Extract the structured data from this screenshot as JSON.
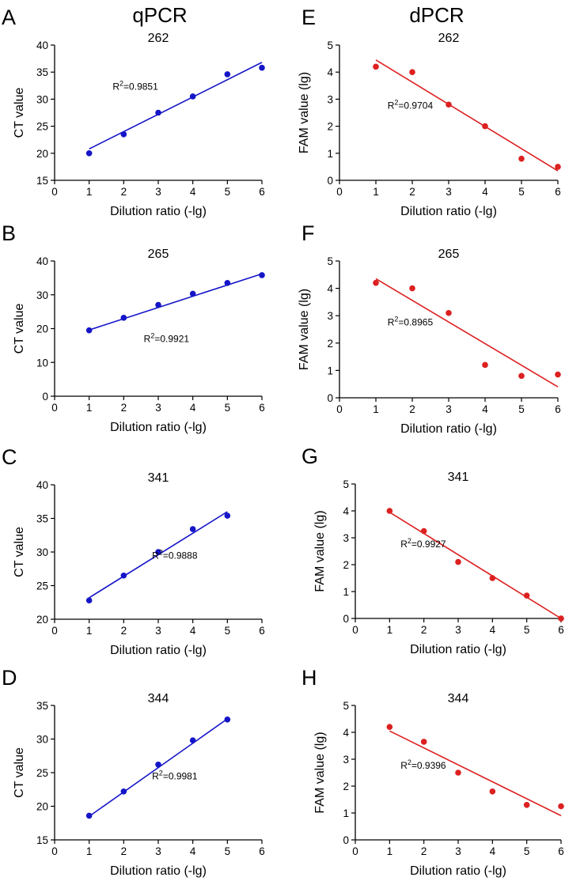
{
  "columns": [
    {
      "title": "qPCR"
    },
    {
      "title": "dPCR"
    }
  ],
  "colors": {
    "qpcr": "#1515c8",
    "dpcr": "#dd2020"
  },
  "chart_data": [
    {
      "type": "scatter",
      "panel": "A",
      "title": "262",
      "xlabel": "Dilution ratio (-lg)",
      "ylabel": "CT value",
      "xlim": [
        0,
        6
      ],
      "ylim": [
        15,
        40
      ],
      "xticks": [
        0,
        1,
        2,
        3,
        4,
        5,
        6
      ],
      "yticks": [
        15,
        20,
        25,
        30,
        35,
        40
      ],
      "x": [
        1,
        2,
        3,
        4,
        5,
        6
      ],
      "y": [
        20.0,
        23.5,
        27.5,
        30.5,
        34.6,
        35.8
      ],
      "fit": {
        "x": [
          1,
          6
        ],
        "y": [
          20.8,
          36.8
        ]
      },
      "r2_label": "R2=0.9851",
      "r2_position": "upper-left",
      "color": "#1515c8"
    },
    {
      "type": "scatter",
      "panel": "E",
      "title": "262",
      "xlabel": "Dilution ratio (-lg)",
      "ylabel": "FAM value (lg)",
      "xlim": [
        0,
        6
      ],
      "ylim": [
        0,
        5
      ],
      "xticks": [
        0,
        1,
        2,
        3,
        4,
        5,
        6
      ],
      "yticks": [
        0,
        1,
        2,
        3,
        4,
        5
      ],
      "x": [
        1,
        2,
        3,
        4,
        5,
        6
      ],
      "y": [
        4.2,
        4.0,
        2.8,
        2.0,
        0.8,
        0.5
      ],
      "fit": {
        "x": [
          1,
          6
        ],
        "y": [
          4.45,
          0.35
        ]
      },
      "r2_label": "R2=0.9704",
      "r2_position": "middle-left",
      "color": "#dd2020"
    },
    {
      "type": "scatter",
      "panel": "B",
      "title": "265",
      "xlabel": "Dilution ratio (-lg)",
      "ylabel": "CT value",
      "xlim": [
        0,
        6
      ],
      "ylim": [
        0,
        40
      ],
      "xticks": [
        0,
        1,
        2,
        3,
        4,
        5,
        6
      ],
      "yticks": [
        0,
        10,
        20,
        30,
        40
      ],
      "x": [
        1,
        2,
        3,
        4,
        5,
        6
      ],
      "y": [
        19.5,
        23.2,
        27.0,
        30.3,
        33.5,
        35.8
      ],
      "fit": {
        "x": [
          1,
          6
        ],
        "y": [
          19.6,
          36.2
        ]
      },
      "r2_label": "R2=0.9921",
      "r2_position": "middle",
      "color": "#1515c8"
    },
    {
      "type": "scatter",
      "panel": "F",
      "title": "265",
      "xlabel": "Dilution ratio (-lg)",
      "ylabel": "FAM value (lg)",
      "xlim": [
        0,
        6
      ],
      "ylim": [
        0,
        5
      ],
      "xticks": [
        0,
        1,
        2,
        3,
        4,
        5,
        6
      ],
      "yticks": [
        0,
        1,
        2,
        3,
        4,
        5
      ],
      "x": [
        1,
        2,
        3,
        4,
        5,
        6
      ],
      "y": [
        4.2,
        4.0,
        3.1,
        1.2,
        0.8,
        0.85
      ],
      "fit": {
        "x": [
          1,
          6
        ],
        "y": [
          4.35,
          0.4
        ]
      },
      "r2_label": "R2=0.8965",
      "r2_position": "middle-left",
      "color": "#dd2020"
    },
    {
      "type": "scatter",
      "panel": "C",
      "title": "341",
      "xlabel": "Dilution ratio (-lg)",
      "ylabel": "CT value",
      "xlim": [
        0,
        6
      ],
      "ylim": [
        20,
        40
      ],
      "xticks": [
        0,
        1,
        2,
        3,
        4,
        5,
        6
      ],
      "yticks": [
        20,
        25,
        30,
        35,
        40
      ],
      "x": [
        1,
        2,
        3,
        4,
        5
      ],
      "y": [
        22.8,
        26.5,
        30.0,
        33.4,
        35.4
      ],
      "fit": {
        "x": [
          1,
          5
        ],
        "y": [
          23.2,
          36.0
        ]
      },
      "r2_label": "R2=0.9888",
      "r2_position": "lower-right",
      "color": "#1515c8"
    },
    {
      "type": "scatter",
      "panel": "G",
      "title": "341",
      "xlabel": "Dilution ratio (-lg)",
      "ylabel": "FAM value (lg)",
      "xlim": [
        0,
        6
      ],
      "ylim": [
        0,
        5
      ],
      "xticks": [
        0,
        1,
        2,
        3,
        4,
        5,
        6
      ],
      "yticks": [
        0,
        1,
        2,
        3,
        4,
        5
      ],
      "x": [
        1,
        2,
        3,
        4,
        5,
        6
      ],
      "y": [
        4.0,
        3.25,
        2.1,
        1.5,
        0.85,
        0.0
      ],
      "fit": {
        "x": [
          1,
          6
        ],
        "y": [
          3.95,
          0.0
        ]
      },
      "r2_label": "R2=0.9927",
      "r2_position": "middle-left",
      "color": "#dd2020"
    },
    {
      "type": "scatter",
      "panel": "D",
      "title": "344",
      "xlabel": "Dilution ratio (-lg)",
      "ylabel": "CT value",
      "xlim": [
        0,
        6
      ],
      "ylim": [
        15,
        35
      ],
      "xticks": [
        0,
        1,
        2,
        3,
        4,
        5,
        6
      ],
      "yticks": [
        15,
        20,
        25,
        30,
        35
      ],
      "x": [
        1,
        2,
        3,
        4,
        5
      ],
      "y": [
        18.6,
        22.2,
        26.2,
        29.8,
        32.9
      ],
      "fit": {
        "x": [
          1,
          5
        ],
        "y": [
          18.5,
          33.0
        ]
      },
      "r2_label": "R2=0.9981",
      "r2_position": "lower-right",
      "color": "#1515c8"
    },
    {
      "type": "scatter",
      "panel": "H",
      "title": "344",
      "xlabel": "Dilution ratio (-lg)",
      "ylabel": "FAM value (lg)",
      "xlim": [
        0,
        6
      ],
      "ylim": [
        0,
        5
      ],
      "xticks": [
        0,
        1,
        2,
        3,
        4,
        5,
        6
      ],
      "yticks": [
        0,
        1,
        2,
        3,
        4,
        5
      ],
      "x": [
        1,
        2,
        3,
        4,
        5,
        6
      ],
      "y": [
        4.2,
        3.65,
        2.5,
        1.8,
        1.3,
        1.25
      ],
      "fit": {
        "x": [
          1,
          6
        ],
        "y": [
          4.05,
          0.9
        ]
      },
      "r2_label": "R2=0.9396",
      "r2_position": "middle-left",
      "color": "#dd2020"
    }
  ]
}
